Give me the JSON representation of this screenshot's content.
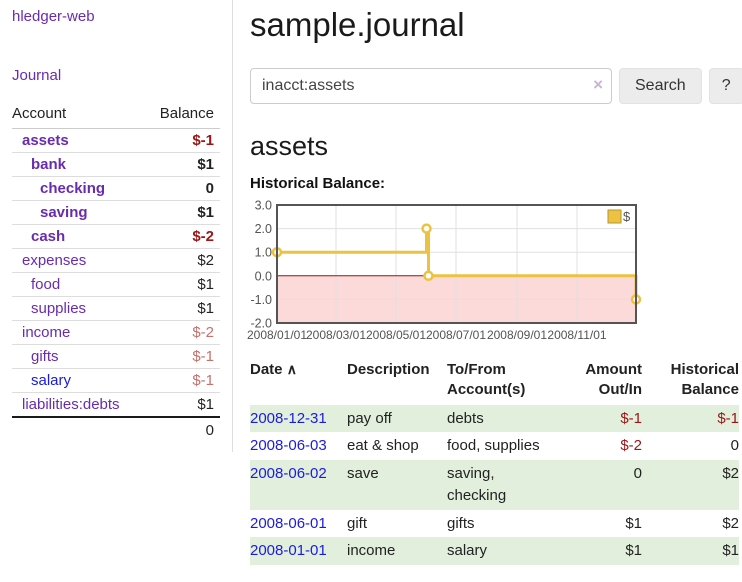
{
  "brand": "hledger-web",
  "nav": {
    "journal": "Journal"
  },
  "colors": {
    "link_purple": "#692baf",
    "link_blue": "#1b1be0",
    "negative_strong": "#9d1414",
    "negative_muted": "#c4716c",
    "row_stripe_green": "#e1efdc",
    "chart_line_gold": "#edc240"
  },
  "sidebar": {
    "account_header": "Account",
    "balance_header": "Balance",
    "accounts": [
      {
        "name": "assets",
        "depth": 1,
        "bold": true,
        "balance": "$-1",
        "negative": "strong",
        "link_color": "purple"
      },
      {
        "name": "bank",
        "depth": 2,
        "bold": true,
        "balance": "$1",
        "negative": "none",
        "link_color": "purple"
      },
      {
        "name": "checking",
        "depth": 3,
        "bold": true,
        "balance": "0",
        "negative": "none",
        "link_color": "purple"
      },
      {
        "name": "saving",
        "depth": 3,
        "bold": true,
        "balance": "$1",
        "negative": "none",
        "link_color": "purple"
      },
      {
        "name": "cash",
        "depth": 2,
        "bold": true,
        "balance": "$-2",
        "negative": "strong",
        "link_color": "purple"
      },
      {
        "name": "expenses",
        "depth": 1,
        "bold": false,
        "balance": "$2",
        "negative": "none",
        "link_color": "purple"
      },
      {
        "name": "food",
        "depth": 2,
        "bold": false,
        "balance": "$1",
        "negative": "none",
        "link_color": "purple"
      },
      {
        "name": "supplies",
        "depth": 2,
        "bold": false,
        "balance": "$1",
        "negative": "none",
        "link_color": "purple"
      },
      {
        "name": "income",
        "depth": 1,
        "bold": false,
        "balance": "$-2",
        "negative": "muted",
        "link_color": "purple"
      },
      {
        "name": "gifts",
        "depth": 2,
        "bold": false,
        "balance": "$-1",
        "negative": "muted",
        "link_color": "purple"
      },
      {
        "name": "salary",
        "depth": 2,
        "bold": false,
        "balance": "$-1",
        "negative": "muted",
        "link_color": "blue"
      },
      {
        "name": "liabilities:debts",
        "depth": 1,
        "bold": false,
        "balance": "$1",
        "negative": "none",
        "link_color": "purple"
      }
    ],
    "total": "0"
  },
  "header": {
    "title": "sample.journal"
  },
  "search": {
    "value": "inacct:assets",
    "clear_label": "×",
    "search_button": "Search",
    "help_button": "?"
  },
  "account_page": {
    "heading": "assets",
    "chart_title": "Historical Balance:"
  },
  "chart_data": {
    "type": "line",
    "step": true,
    "title": "Historical Balance",
    "legend": "$",
    "legend_position": "top-right",
    "grid": true,
    "ylim": [
      -2.0,
      3.0
    ],
    "yticks": [
      3.0,
      2.0,
      1.0,
      0.0,
      -1.0,
      -2.0
    ],
    "xticks": [
      "2008/01/01",
      "2008/03/01",
      "2008/05/01",
      "2008/07/01",
      "2008/09/01",
      "2008/11/01"
    ],
    "xrange": [
      "2008-01-01",
      "2008-12-31"
    ],
    "negative_region_color": "#fcdada",
    "zero_line_color": "#911414",
    "series": [
      {
        "name": "$",
        "color": "#edc240",
        "points": [
          [
            "2008-01-01",
            1.0
          ],
          [
            "2008-06-01",
            2.0
          ],
          [
            "2008-06-03",
            0.0
          ],
          [
            "2008-12-31",
            -1.0
          ]
        ]
      }
    ]
  },
  "register": {
    "headers": {
      "date": "Date",
      "sort_icon": "∧",
      "description": "Description",
      "accounts": "To/From Account(s)",
      "amount": "Amount Out/In",
      "balance": "Historical Balance"
    },
    "rows": [
      {
        "date": "2008-12-31",
        "description": "pay off",
        "accounts": "debts",
        "amount": "$-1",
        "amount_negative": true,
        "balance": "$-1",
        "balance_negative": true
      },
      {
        "date": "2008-06-03",
        "description": "eat & shop",
        "accounts": "food, supplies",
        "amount": "$-2",
        "amount_negative": true,
        "balance": "0",
        "balance_negative": false
      },
      {
        "date": "2008-06-02",
        "description": "save",
        "accounts": "saving, checking",
        "amount": "0",
        "amount_negative": false,
        "balance": "$2",
        "balance_negative": false
      },
      {
        "date": "2008-06-01",
        "description": "gift",
        "accounts": "gifts",
        "amount": "$1",
        "amount_negative": false,
        "balance": "$2",
        "balance_negative": false
      },
      {
        "date": "2008-01-01",
        "description": "income",
        "accounts": "salary",
        "amount": "$1",
        "amount_negative": false,
        "balance": "$1",
        "balance_negative": false
      }
    ]
  }
}
